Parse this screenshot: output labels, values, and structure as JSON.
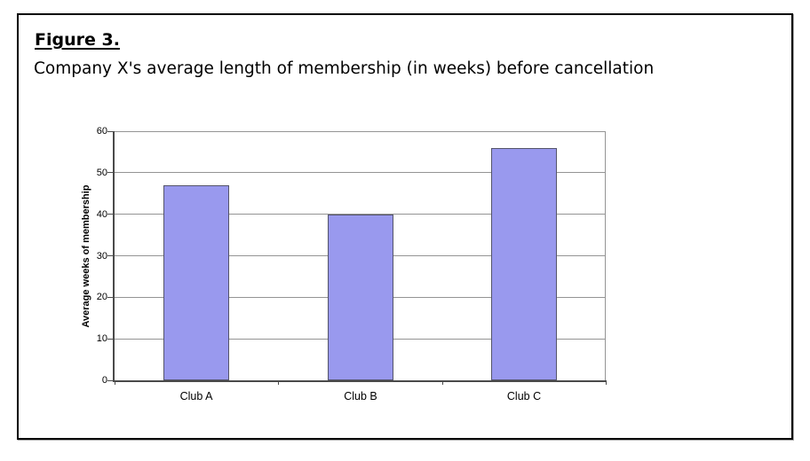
{
  "figure": {
    "label": "Figure 3.",
    "title": "Company X's average length of membership (in weeks) before cancellation"
  },
  "chart_data": {
    "type": "bar",
    "categories": [
      "Club A",
      "Club B",
      "Club C"
    ],
    "values": [
      47,
      40,
      56
    ],
    "title": "Company X's average length of membership (in weeks) before cancellation",
    "xlabel": "",
    "ylabel": "Average weeks of membership",
    "ylim": [
      0,
      60
    ],
    "yticks": [
      0,
      10,
      20,
      30,
      40,
      50,
      60
    ],
    "grid": "horizontal",
    "legend": "none",
    "colors": {
      "bar_fill": "#9999EE",
      "bar_border": "#54546A",
      "gridline": "#949494",
      "axis": "#4A4A4A",
      "frame_border": "#000000",
      "background": "#FFFFFF",
      "text": "#000000"
    }
  }
}
